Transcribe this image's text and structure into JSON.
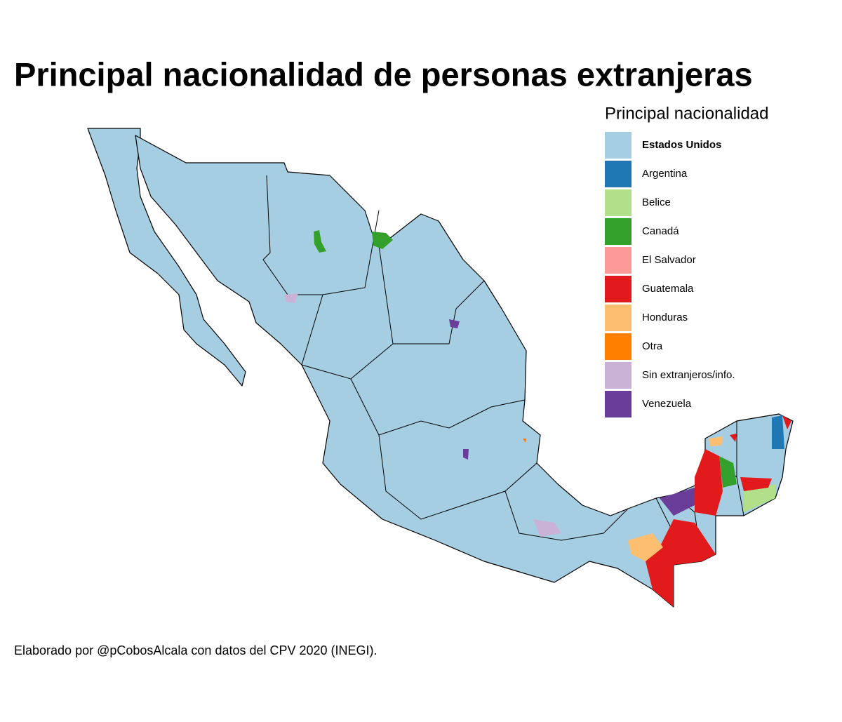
{
  "header": {
    "title": "Principal nacionalidad de personas extranjeras"
  },
  "legend": {
    "title": "Principal nacionalidad",
    "items": [
      {
        "name": "Estados Unidos",
        "color": "#a6cee3"
      },
      {
        "name": "Argentina",
        "color": "#1f78b4"
      },
      {
        "name": "Belice",
        "color": "#b2df8a"
      },
      {
        "name": "Canadá",
        "color": "#33a02c"
      },
      {
        "name": "El Salvador",
        "color": "#fb9a99"
      },
      {
        "name": "Guatemala",
        "color": "#e31a1c"
      },
      {
        "name": "Honduras",
        "color": "#fdbf6f"
      },
      {
        "name": "Otra",
        "color": "#ff7f00"
      },
      {
        "name": "Sin extranjeros/info.",
        "color": "#cab2d6"
      },
      {
        "name": "Venezuela",
        "color": "#6a3d9a"
      }
    ]
  },
  "footer": {
    "caption": "Elaborado por @pCobosAlcala con datos del CPV 2020 (INEGI)."
  }
}
